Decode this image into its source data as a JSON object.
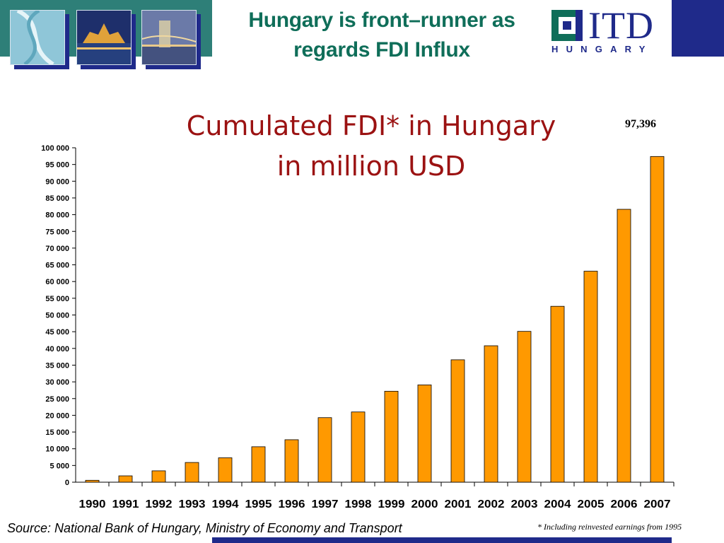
{
  "slide": {
    "title_line1": "Hungary is front–runner as",
    "title_line2": "regards FDI Influx",
    "source": "Source: National Bank of Hungary, Ministry of Economy and Transport",
    "footnote": "* Including reinvested earnings from 1995",
    "colors": {
      "accent": "#1f2a8a",
      "band": "#2e7f78",
      "title": "#0f6e59",
      "chart_title": "#9b1212",
      "bar": "#ff9900"
    }
  },
  "logo": {
    "brand": "ITD",
    "subtitle": "HUNGARY"
  },
  "chart_data": {
    "type": "bar",
    "title_line1": "Cumulated FDI* in Hungary",
    "title_line2": "in million USD",
    "callout": "97,396",
    "categories": [
      "1990",
      "1991",
      "1992",
      "1993",
      "1994",
      "1995",
      "1996",
      "1997",
      "1998",
      "1999",
      "2000",
      "2001",
      "2002",
      "2003",
      "2004",
      "2005",
      "2006",
      "2007"
    ],
    "values": [
      570,
      1900,
      3400,
      5900,
      7300,
      10600,
      12700,
      19300,
      21000,
      27200,
      29100,
      36600,
      40800,
      45100,
      52600,
      63100,
      81600,
      97396
    ],
    "ylim": [
      0,
      100000
    ],
    "yticks": [
      "0",
      "5 000",
      "10 000",
      "15 000",
      "20 000",
      "25 000",
      "30 000",
      "35 000",
      "40 000",
      "45 000",
      "50 000",
      "55 000",
      "60 000",
      "65 000",
      "70 000",
      "75 000",
      "80 000",
      "85 000",
      "90 000",
      "95 000",
      "100 000"
    ],
    "grid": false,
    "bar_color": "#ff9900"
  }
}
